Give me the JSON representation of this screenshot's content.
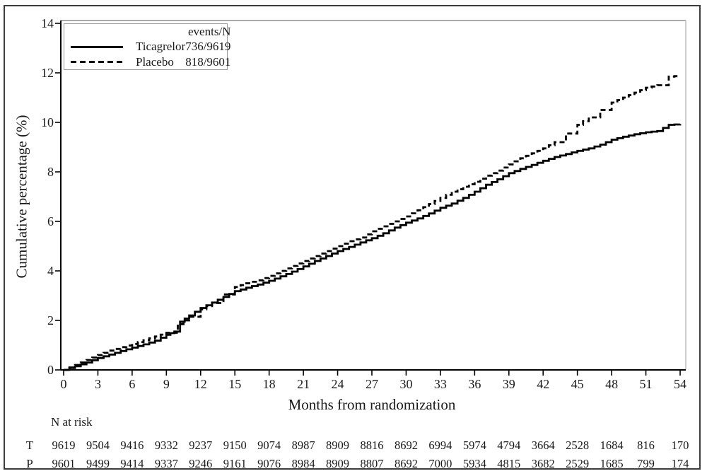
{
  "chart_data": {
    "type": "line",
    "subtype": "kaplan-meier-step-curves",
    "xlabel": "Months from randomization",
    "ylabel": "Cumulative percentage (%)",
    "xlim": [
      0,
      54
    ],
    "ylim": [
      0,
      14
    ],
    "xticks": [
      0,
      3,
      6,
      9,
      12,
      15,
      18,
      21,
      24,
      27,
      30,
      33,
      36,
      39,
      42,
      45,
      48,
      51,
      54
    ],
    "yticks": [
      0,
      2,
      4,
      6,
      8,
      10,
      12,
      14
    ],
    "grid": false,
    "legend": {
      "position": "top-left",
      "header": "events/N",
      "entries": [
        {
          "name": "Ticagrelor",
          "events_n": "736/9619",
          "style": "solid"
        },
        {
          "name": "Placebo",
          "events_n": "818/9601",
          "style": "dashed"
        }
      ]
    },
    "line_color": "#000000",
    "series": [
      {
        "name": "Ticagrelor",
        "style": "solid",
        "points": [
          [
            0,
            0
          ],
          [
            1,
            0.15
          ],
          [
            2,
            0.3
          ],
          [
            3,
            0.48
          ],
          [
            4,
            0.62
          ],
          [
            5,
            0.76
          ],
          [
            6,
            0.9
          ],
          [
            7,
            1.03
          ],
          [
            8,
            1.18
          ],
          [
            9,
            1.42
          ],
          [
            9.7,
            1.55
          ],
          [
            10.2,
            1.95
          ],
          [
            11,
            2.2
          ],
          [
            12,
            2.5
          ],
          [
            13,
            2.72
          ],
          [
            14,
            2.95
          ],
          [
            15,
            3.18
          ],
          [
            16,
            3.32
          ],
          [
            17,
            3.45
          ],
          [
            18,
            3.6
          ],
          [
            19,
            3.78
          ],
          [
            20,
            3.97
          ],
          [
            21,
            4.18
          ],
          [
            22,
            4.4
          ],
          [
            23,
            4.6
          ],
          [
            24,
            4.8
          ],
          [
            25,
            4.97
          ],
          [
            26,
            5.15
          ],
          [
            27,
            5.32
          ],
          [
            28,
            5.52
          ],
          [
            29,
            5.75
          ],
          [
            30,
            5.95
          ],
          [
            31,
            6.12
          ],
          [
            32,
            6.32
          ],
          [
            33,
            6.55
          ],
          [
            34,
            6.72
          ],
          [
            35,
            6.95
          ],
          [
            36,
            7.2
          ],
          [
            37,
            7.48
          ],
          [
            38,
            7.7
          ],
          [
            39,
            7.95
          ],
          [
            40,
            8.12
          ],
          [
            41,
            8.28
          ],
          [
            42,
            8.45
          ],
          [
            43,
            8.6
          ],
          [
            44,
            8.72
          ],
          [
            45,
            8.85
          ],
          [
            46,
            8.95
          ],
          [
            47,
            9.1
          ],
          [
            48,
            9.3
          ],
          [
            49,
            9.42
          ],
          [
            50,
            9.52
          ],
          [
            51,
            9.6
          ],
          [
            52,
            9.65
          ],
          [
            53,
            9.9
          ],
          [
            54,
            9.93
          ]
        ]
      },
      {
        "name": "Placebo",
        "style": "dashed",
        "points": [
          [
            0,
            0
          ],
          [
            1,
            0.2
          ],
          [
            2,
            0.4
          ],
          [
            3,
            0.6
          ],
          [
            4,
            0.78
          ],
          [
            5,
            0.92
          ],
          [
            6,
            1.05
          ],
          [
            7,
            1.2
          ],
          [
            8,
            1.35
          ],
          [
            9,
            1.5
          ],
          [
            10,
            1.85
          ],
          [
            11,
            2.15
          ],
          [
            12,
            2.45
          ],
          [
            13,
            2.7
          ],
          [
            14,
            3.05
          ],
          [
            15,
            3.35
          ],
          [
            16,
            3.5
          ],
          [
            17,
            3.62
          ],
          [
            18,
            3.8
          ],
          [
            19,
            4.0
          ],
          [
            20,
            4.2
          ],
          [
            21,
            4.4
          ],
          [
            22,
            4.6
          ],
          [
            23,
            4.8
          ],
          [
            24,
            5.0
          ],
          [
            25,
            5.2
          ],
          [
            26,
            5.35
          ],
          [
            27,
            5.6
          ],
          [
            28,
            5.8
          ],
          [
            29,
            6.0
          ],
          [
            30,
            6.2
          ],
          [
            31,
            6.45
          ],
          [
            32,
            6.7
          ],
          [
            33,
            6.95
          ],
          [
            34,
            7.2
          ],
          [
            35,
            7.4
          ],
          [
            36,
            7.6
          ],
          [
            37,
            7.85
          ],
          [
            38,
            8.05
          ],
          [
            39,
            8.3
          ],
          [
            40,
            8.55
          ],
          [
            41,
            8.75
          ],
          [
            42,
            8.95
          ],
          [
            43,
            9.2
          ],
          [
            44,
            9.55
          ],
          [
            45,
            9.9
          ],
          [
            46,
            10.2
          ],
          [
            47,
            10.5
          ],
          [
            48,
            10.8
          ],
          [
            49,
            11.0
          ],
          [
            50,
            11.2
          ],
          [
            51,
            11.4
          ],
          [
            52,
            11.5
          ],
          [
            53,
            11.85
          ],
          [
            54,
            11.88
          ]
        ]
      }
    ],
    "risk_table": {
      "title": "N at risk",
      "months": [
        0,
        3,
        6,
        9,
        12,
        15,
        18,
        21,
        24,
        27,
        30,
        33,
        36,
        39,
        42,
        45,
        48,
        51,
        54
      ],
      "rows": [
        {
          "label": "T",
          "series": "Ticagrelor",
          "values": [
            9619,
            9504,
            9416,
            9332,
            9237,
            9150,
            9074,
            8987,
            8909,
            8816,
            8692,
            6994,
            5974,
            4794,
            3664,
            2528,
            1684,
            816,
            170
          ]
        },
        {
          "label": "P",
          "series": "Placebo",
          "values": [
            9601,
            9499,
            9414,
            9337,
            9246,
            9161,
            9076,
            8984,
            8909,
            8807,
            8692,
            7000,
            5934,
            4815,
            3682,
            2529,
            1685,
            799,
            174
          ]
        }
      ]
    }
  }
}
